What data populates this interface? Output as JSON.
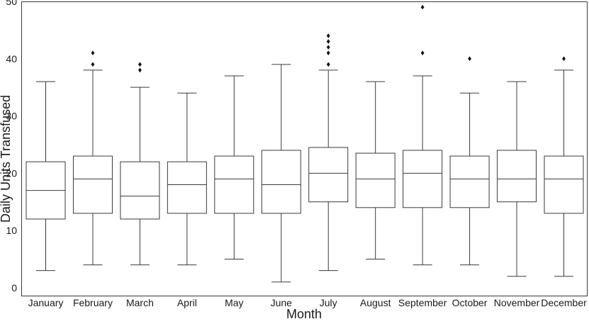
{
  "chart_data": {
    "type": "box",
    "xlabel": "Month",
    "ylabel": "Daily Units Transfused",
    "ylim": [
      -1.5,
      50
    ],
    "yticks": [
      0,
      10,
      20,
      30,
      40,
      50
    ],
    "grid": false,
    "legend": "none",
    "colors": {
      "stroke": "#3a3a3a",
      "box_fill": "#ffffff",
      "flier": "#111111"
    },
    "categories": [
      "January",
      "February",
      "March",
      "April",
      "May",
      "June",
      "July",
      "August",
      "September",
      "October",
      "November",
      "December"
    ],
    "boxes": [
      {
        "whisker_low": 3,
        "q1": 12,
        "median": 17,
        "q3": 22,
        "whisker_high": 36,
        "outliers": []
      },
      {
        "whisker_low": 4,
        "q1": 13,
        "median": 19,
        "q3": 23,
        "whisker_high": 38,
        "outliers": [
          39,
          41
        ]
      },
      {
        "whisker_low": 4,
        "q1": 12,
        "median": 16,
        "q3": 22,
        "whisker_high": 35,
        "outliers": [
          38,
          39
        ]
      },
      {
        "whisker_low": 4,
        "q1": 13,
        "median": 18,
        "q3": 22,
        "whisker_high": 34,
        "outliers": []
      },
      {
        "whisker_low": 5,
        "q1": 13,
        "median": 19,
        "q3": 23,
        "whisker_high": 37,
        "outliers": []
      },
      {
        "whisker_low": 1,
        "q1": 13,
        "median": 18,
        "q3": 24,
        "whisker_high": 39,
        "outliers": []
      },
      {
        "whisker_low": 3,
        "q1": 15,
        "median": 20,
        "q3": 24.5,
        "whisker_high": 38,
        "outliers": [
          39,
          41,
          42,
          43,
          44
        ]
      },
      {
        "whisker_low": 5,
        "q1": 14,
        "median": 19,
        "q3": 23.5,
        "whisker_high": 36,
        "outliers": []
      },
      {
        "whisker_low": 4,
        "q1": 14,
        "median": 20,
        "q3": 24,
        "whisker_high": 37,
        "outliers": [
          41,
          49
        ]
      },
      {
        "whisker_low": 4,
        "q1": 14,
        "median": 19,
        "q3": 23,
        "whisker_high": 34,
        "outliers": [
          40
        ]
      },
      {
        "whisker_low": 2,
        "q1": 15,
        "median": 19,
        "q3": 24,
        "whisker_high": 36,
        "outliers": []
      },
      {
        "whisker_low": 2,
        "q1": 13,
        "median": 19,
        "q3": 23,
        "whisker_high": 38,
        "outliers": [
          40
        ]
      }
    ]
  }
}
